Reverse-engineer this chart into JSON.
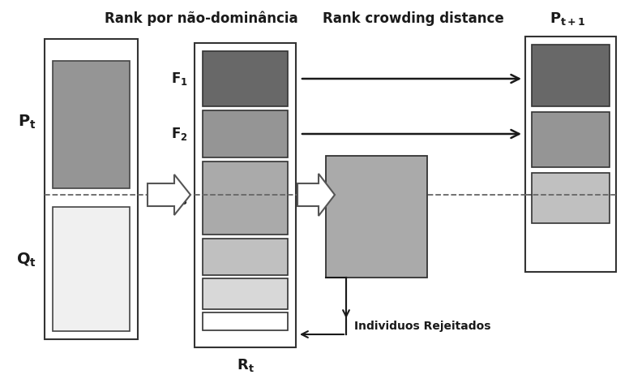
{
  "bg_color": "#ffffff",
  "title_rank": "Rank por não-dominância",
  "title_crowd": "Rank crowding distance",
  "label_pt": "P_t",
  "label_qt": "Q_t",
  "label_rt": "R_t",
  "label_rejected": "Individuos Rejeitados",
  "colors": {
    "dark_gray": "#686868",
    "mid_gray": "#959595",
    "light_gray": "#aaaaaa",
    "lighter_gray": "#c0c0c0",
    "lightest_gray": "#d8d8d8",
    "very_light": "#f0f0f0",
    "white": "#ffffff",
    "border": "#333333"
  },
  "layout": {
    "fig_w": 7.76,
    "fig_h": 4.83,
    "dpi": 100
  }
}
